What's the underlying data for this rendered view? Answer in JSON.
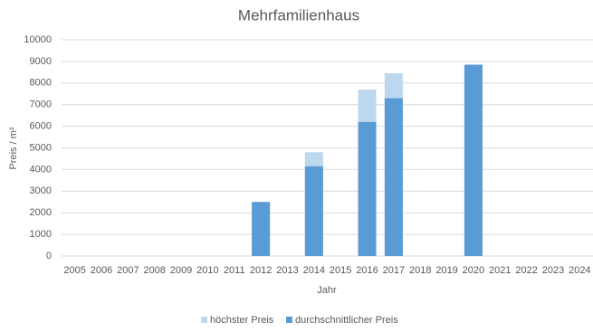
{
  "chart_data": {
    "type": "bar",
    "title": "Mehrfamilienhaus",
    "x_label": "Jahr",
    "y_label": "Preis / m²",
    "categories": [
      "2005",
      "2006",
      "2007",
      "2008",
      "2009",
      "2010",
      "2011",
      "2012",
      "2013",
      "2014",
      "2015",
      "2016",
      "2017",
      "2018",
      "2019",
      "2020",
      "2021",
      "2022",
      "2023",
      "2024"
    ],
    "series": [
      {
        "name": "höchster Preis",
        "color": "#bdd7ee",
        "values": [
          null,
          null,
          null,
          null,
          null,
          null,
          null,
          2500,
          null,
          4800,
          null,
          7700,
          8450,
          null,
          null,
          8850,
          null,
          null,
          null,
          null
        ]
      },
      {
        "name": "durchschnittlicher Preis",
        "color": "#5b9bd5",
        "values": [
          null,
          null,
          null,
          null,
          null,
          null,
          null,
          2500,
          null,
          4150,
          null,
          6200,
          7300,
          null,
          null,
          8850,
          null,
          null,
          null,
          null
        ]
      }
    ],
    "ylim": [
      0,
      10000
    ],
    "yticks": [
      0,
      1000,
      2000,
      3000,
      4000,
      5000,
      6000,
      7000,
      8000,
      9000,
      10000
    ],
    "grid": true,
    "legend": "bottom"
  }
}
